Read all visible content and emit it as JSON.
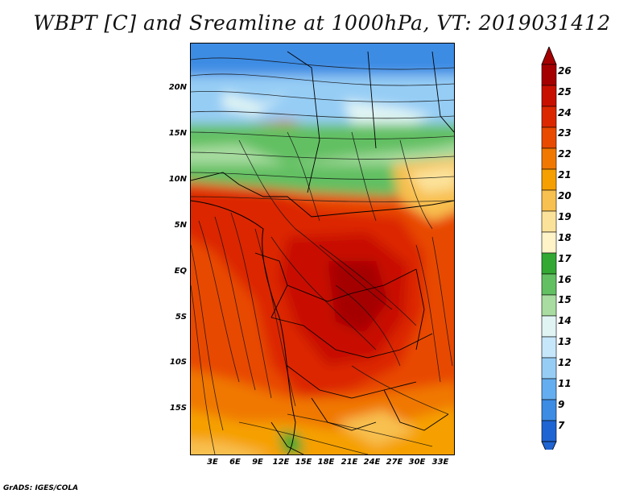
{
  "title": "WBPT [C] and Sreamline at 1000hPa, VT: 2019031412",
  "credit": "GrADS: IGES/COLA",
  "lat_labels": [
    "20N",
    "15N",
    "10N",
    "5N",
    "EQ",
    "5S",
    "10S",
    "15S"
  ],
  "lon_labels": [
    "3E",
    "6E",
    "9E",
    "12E",
    "15E",
    "18E",
    "21E",
    "24E",
    "27E",
    "30E",
    "33E"
  ],
  "colorbar": {
    "labels": [
      "26",
      "25",
      "24",
      "23",
      "22",
      "21",
      "20",
      "19",
      "18",
      "17",
      "16",
      "15",
      "14",
      "13",
      "12",
      "11",
      "9",
      "7"
    ],
    "colors": [
      "#a50000",
      "#c81000",
      "#dc2800",
      "#e84a00",
      "#f07800",
      "#f5a000",
      "#f8c050",
      "#fbe29a",
      "#fff3c8",
      "#33a833",
      "#62c062",
      "#a8dca0",
      "#e0f4f4",
      "#c6e6fa",
      "#96cdf5",
      "#64aeef",
      "#3c8ce4",
      "#1e64d2"
    ]
  }
}
